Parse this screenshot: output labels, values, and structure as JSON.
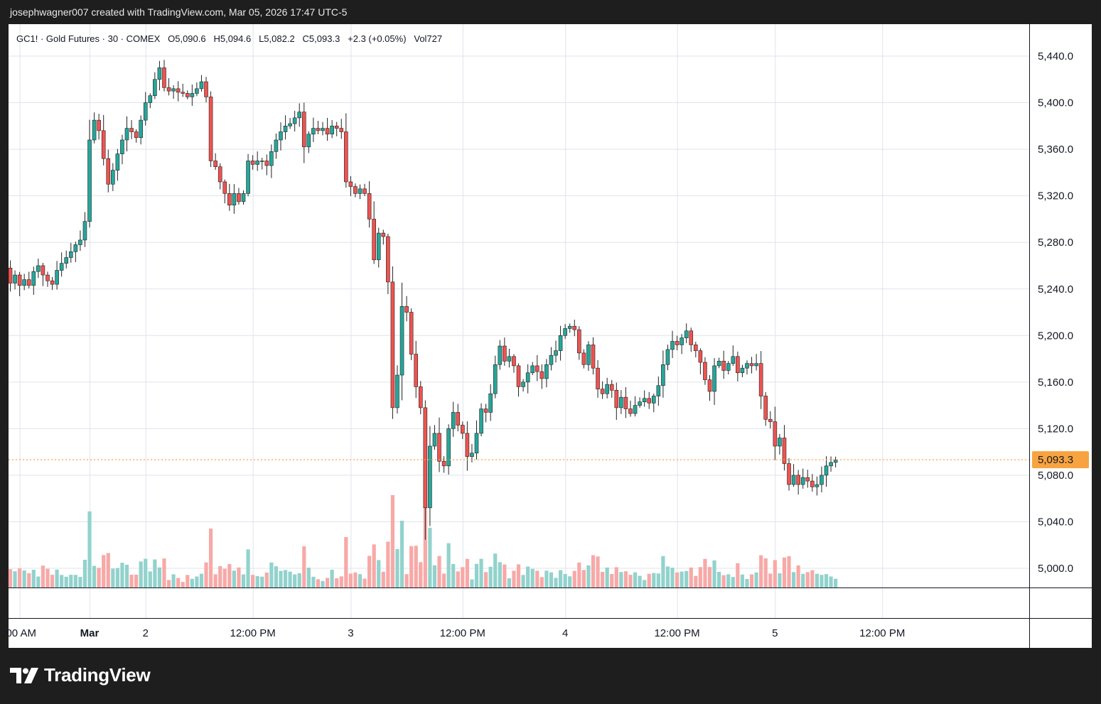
{
  "header": {
    "credit": "josephwagner007 created with TradingView.com, Mar 05, 2026 17:47 UTC-5"
  },
  "legend": {
    "symbol": "GC1! · Gold Futures · 30 · COMEX",
    "open": "O5,090.6",
    "high": "H5,094.6",
    "low": "L5,082.2",
    "close": "C5,093.3",
    "change": "+2.3 (+0.05%)",
    "volume": "Vol727"
  },
  "brand": {
    "name": "TradingView"
  },
  "colors": {
    "up": "#26a69a",
    "down": "#ef5350",
    "up_vol": "#92d2cc",
    "down_vol": "#f7a9a7",
    "last_price": "#f7a440",
    "grid": "#e0e3eb"
  },
  "chart_data": {
    "type": "candlestick",
    "symbol": "GC1!",
    "interval": "30",
    "y_ticks": [
      "5,440.0",
      "5,400.0",
      "5,360.0",
      "5,320.0",
      "5,280.0",
      "5,240.0",
      "5,200.0",
      "5,160.0",
      "5,120.0",
      "5,080.0",
      "5,040.0",
      "5,000.0"
    ],
    "y_tick_values": [
      5440,
      5400,
      5360,
      5320,
      5280,
      5240,
      5200,
      5160,
      5120,
      5080,
      5040,
      5000
    ],
    "x_ticks": [
      ":00 AM",
      "Mar",
      "2",
      "12:00 PM",
      "3",
      "12:00 PM",
      "4",
      "12:00 PM",
      "5",
      "12:00 PM"
    ],
    "x_tick_bar_index": [
      2,
      17,
      29,
      52,
      73,
      97,
      119,
      143,
      164,
      187
    ],
    "bold_x_ticks": [
      "Mar"
    ],
    "last_price": 5093.3,
    "last_price_label": "5,093.3",
    "ylim": [
      4984,
      5462
    ],
    "grid": true,
    "closes": [
      5245,
      5252,
      5243,
      5248,
      5243,
      5255,
      5260,
      5252,
      5247,
      5244,
      5256,
      5262,
      5267,
      5272,
      5278,
      5282,
      5298,
      5368,
      5385,
      5376,
      5352,
      5330,
      5342,
      5356,
      5368,
      5378,
      5375,
      5370,
      5385,
      5400,
      5406,
      5420,
      5430,
      5413,
      5410,
      5412,
      5409,
      5408,
      5405,
      5408,
      5412,
      5418,
      5405,
      5350,
      5345,
      5332,
      5322,
      5312,
      5322,
      5315,
      5322,
      5350,
      5347,
      5350,
      5350,
      5346,
      5358,
      5368,
      5375,
      5380,
      5382,
      5387,
      5392,
      5362,
      5373,
      5378,
      5376,
      5378,
      5373,
      5380,
      5378,
      5375,
      5332,
      5328,
      5322,
      5326,
      5322,
      5300,
      5265,
      5288,
      5285,
      5246,
      5138,
      5166,
      5225,
      5220,
      5184,
      5156,
      5138,
      5052,
      5105,
      5116,
      5092,
      5088,
      5120,
      5134,
      5123,
      5116,
      5096,
      5099,
      5116,
      5137,
      5134,
      5150,
      5175,
      5191,
      5178,
      5182,
      5174,
      5156,
      5160,
      5168,
      5174,
      5169,
      5163,
      5175,
      5183,
      5187,
      5200,
      5206,
      5208,
      5205,
      5185,
      5175,
      5192,
      5172,
      5154,
      5150,
      5158,
      5153,
      5138,
      5147,
      5137,
      5133,
      5140,
      5143,
      5146,
      5142,
      5148,
      5157,
      5175,
      5188,
      5195,
      5192,
      5198,
      5204,
      5192,
      5187,
      5177,
      5162,
      5152,
      5174,
      5178,
      5170,
      5176,
      5182,
      5168,
      5172,
      5176,
      5174,
      5176,
      5148,
      5128,
      5126,
      5105,
      5112,
      5090,
      5072,
      5080,
      5072,
      5078,
      5075,
      5070,
      5072,
      5080,
      5088,
      5091,
      5093
    ]
  }
}
